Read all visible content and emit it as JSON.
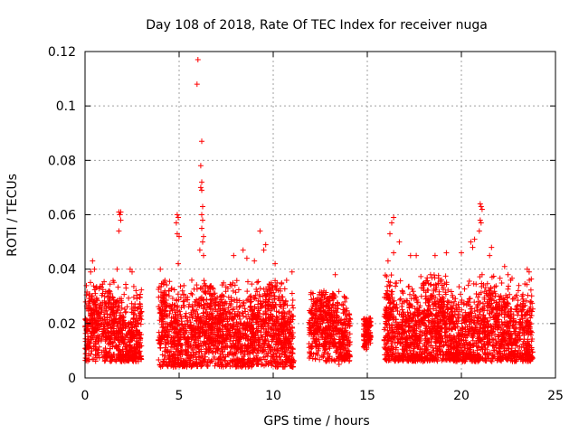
{
  "chart_data": {
    "type": "scatter",
    "title": "Day 108 of 2018, Rate Of TEC Index for receiver nuga",
    "xlabel": "GPS time / hours",
    "ylabel": "ROTI / TECUs",
    "xlim": [
      0,
      25
    ],
    "ylim": [
      0,
      0.12
    ],
    "x_ticks": [
      "0",
      "5",
      "10",
      "15",
      "20",
      "25"
    ],
    "y_ticks": [
      "0",
      "0.02",
      "0.04",
      "0.06",
      "0.08",
      "0.1",
      "0.12"
    ],
    "x_tick_values": [
      0,
      5,
      10,
      15,
      20,
      25
    ],
    "y_tick_values": [
      0,
      0.02,
      0.04,
      0.06,
      0.08,
      0.1,
      0.12
    ],
    "grid": true,
    "marker": "plus",
    "series_color": "#ff0000",
    "clusters": [
      {
        "x_range": [
          0.0,
          3.0
        ],
        "y_range": [
          0.006,
          0.036
        ]
      },
      {
        "x_range": [
          3.9,
          11.1
        ],
        "y_range": [
          0.004,
          0.036
        ]
      },
      {
        "x_range": [
          11.9,
          14.1
        ],
        "y_range": [
          0.006,
          0.032
        ]
      },
      {
        "x_range": [
          14.8,
          15.2
        ],
        "y_range": [
          0.01,
          0.022
        ]
      },
      {
        "x_range": [
          15.9,
          23.8
        ],
        "y_range": [
          0.006,
          0.038
        ]
      }
    ],
    "outliers": [
      {
        "x": 0.4,
        "y": 0.043
      },
      {
        "x": 0.5,
        "y": 0.04
      },
      {
        "x": 0.3,
        "y": 0.039
      },
      {
        "x": 1.8,
        "y": 0.061
      },
      {
        "x": 1.85,
        "y": 0.06
      },
      {
        "x": 1.9,
        "y": 0.061
      },
      {
        "x": 1.8,
        "y": 0.054
      },
      {
        "x": 1.9,
        "y": 0.058
      },
      {
        "x": 1.7,
        "y": 0.04
      },
      {
        "x": 2.4,
        "y": 0.04
      },
      {
        "x": 2.5,
        "y": 0.039
      },
      {
        "x": 4.0,
        "y": 0.04
      },
      {
        "x": 4.9,
        "y": 0.06
      },
      {
        "x": 4.95,
        "y": 0.059
      },
      {
        "x": 4.85,
        "y": 0.057
      },
      {
        "x": 4.9,
        "y": 0.053
      },
      {
        "x": 5.0,
        "y": 0.052
      },
      {
        "x": 4.95,
        "y": 0.042
      },
      {
        "x": 6.0,
        "y": 0.117
      },
      {
        "x": 5.95,
        "y": 0.108
      },
      {
        "x": 6.2,
        "y": 0.087
      },
      {
        "x": 6.15,
        "y": 0.078
      },
      {
        "x": 6.2,
        "y": 0.072
      },
      {
        "x": 6.15,
        "y": 0.07
      },
      {
        "x": 6.2,
        "y": 0.069
      },
      {
        "x": 6.25,
        "y": 0.063
      },
      {
        "x": 6.2,
        "y": 0.06
      },
      {
        "x": 6.25,
        "y": 0.058
      },
      {
        "x": 6.2,
        "y": 0.055
      },
      {
        "x": 6.3,
        "y": 0.052
      },
      {
        "x": 6.25,
        "y": 0.05
      },
      {
        "x": 6.1,
        "y": 0.047
      },
      {
        "x": 6.3,
        "y": 0.045
      },
      {
        "x": 7.9,
        "y": 0.045
      },
      {
        "x": 8.4,
        "y": 0.047
      },
      {
        "x": 8.6,
        "y": 0.044
      },
      {
        "x": 9.3,
        "y": 0.054
      },
      {
        "x": 9.6,
        "y": 0.049
      },
      {
        "x": 9.5,
        "y": 0.047
      },
      {
        "x": 9.0,
        "y": 0.043
      },
      {
        "x": 10.1,
        "y": 0.042
      },
      {
        "x": 11.0,
        "y": 0.039
      },
      {
        "x": 13.3,
        "y": 0.038
      },
      {
        "x": 13.5,
        "y": 0.005
      },
      {
        "x": 16.4,
        "y": 0.059
      },
      {
        "x": 16.3,
        "y": 0.057
      },
      {
        "x": 16.2,
        "y": 0.053
      },
      {
        "x": 16.7,
        "y": 0.05
      },
      {
        "x": 16.4,
        "y": 0.046
      },
      {
        "x": 16.1,
        "y": 0.043
      },
      {
        "x": 17.3,
        "y": 0.045
      },
      {
        "x": 17.6,
        "y": 0.045
      },
      {
        "x": 18.6,
        "y": 0.045
      },
      {
        "x": 19.2,
        "y": 0.046
      },
      {
        "x": 20.0,
        "y": 0.046
      },
      {
        "x": 20.5,
        "y": 0.05
      },
      {
        "x": 20.7,
        "y": 0.051
      },
      {
        "x": 20.6,
        "y": 0.048
      },
      {
        "x": 21.0,
        "y": 0.064
      },
      {
        "x": 21.05,
        "y": 0.063
      },
      {
        "x": 21.1,
        "y": 0.062
      },
      {
        "x": 21.0,
        "y": 0.058
      },
      {
        "x": 21.05,
        "y": 0.057
      },
      {
        "x": 20.95,
        "y": 0.054
      },
      {
        "x": 21.6,
        "y": 0.048
      },
      {
        "x": 21.5,
        "y": 0.045
      },
      {
        "x": 22.3,
        "y": 0.041
      },
      {
        "x": 23.5,
        "y": 0.04
      },
      {
        "x": 23.6,
        "y": 0.039
      }
    ]
  }
}
